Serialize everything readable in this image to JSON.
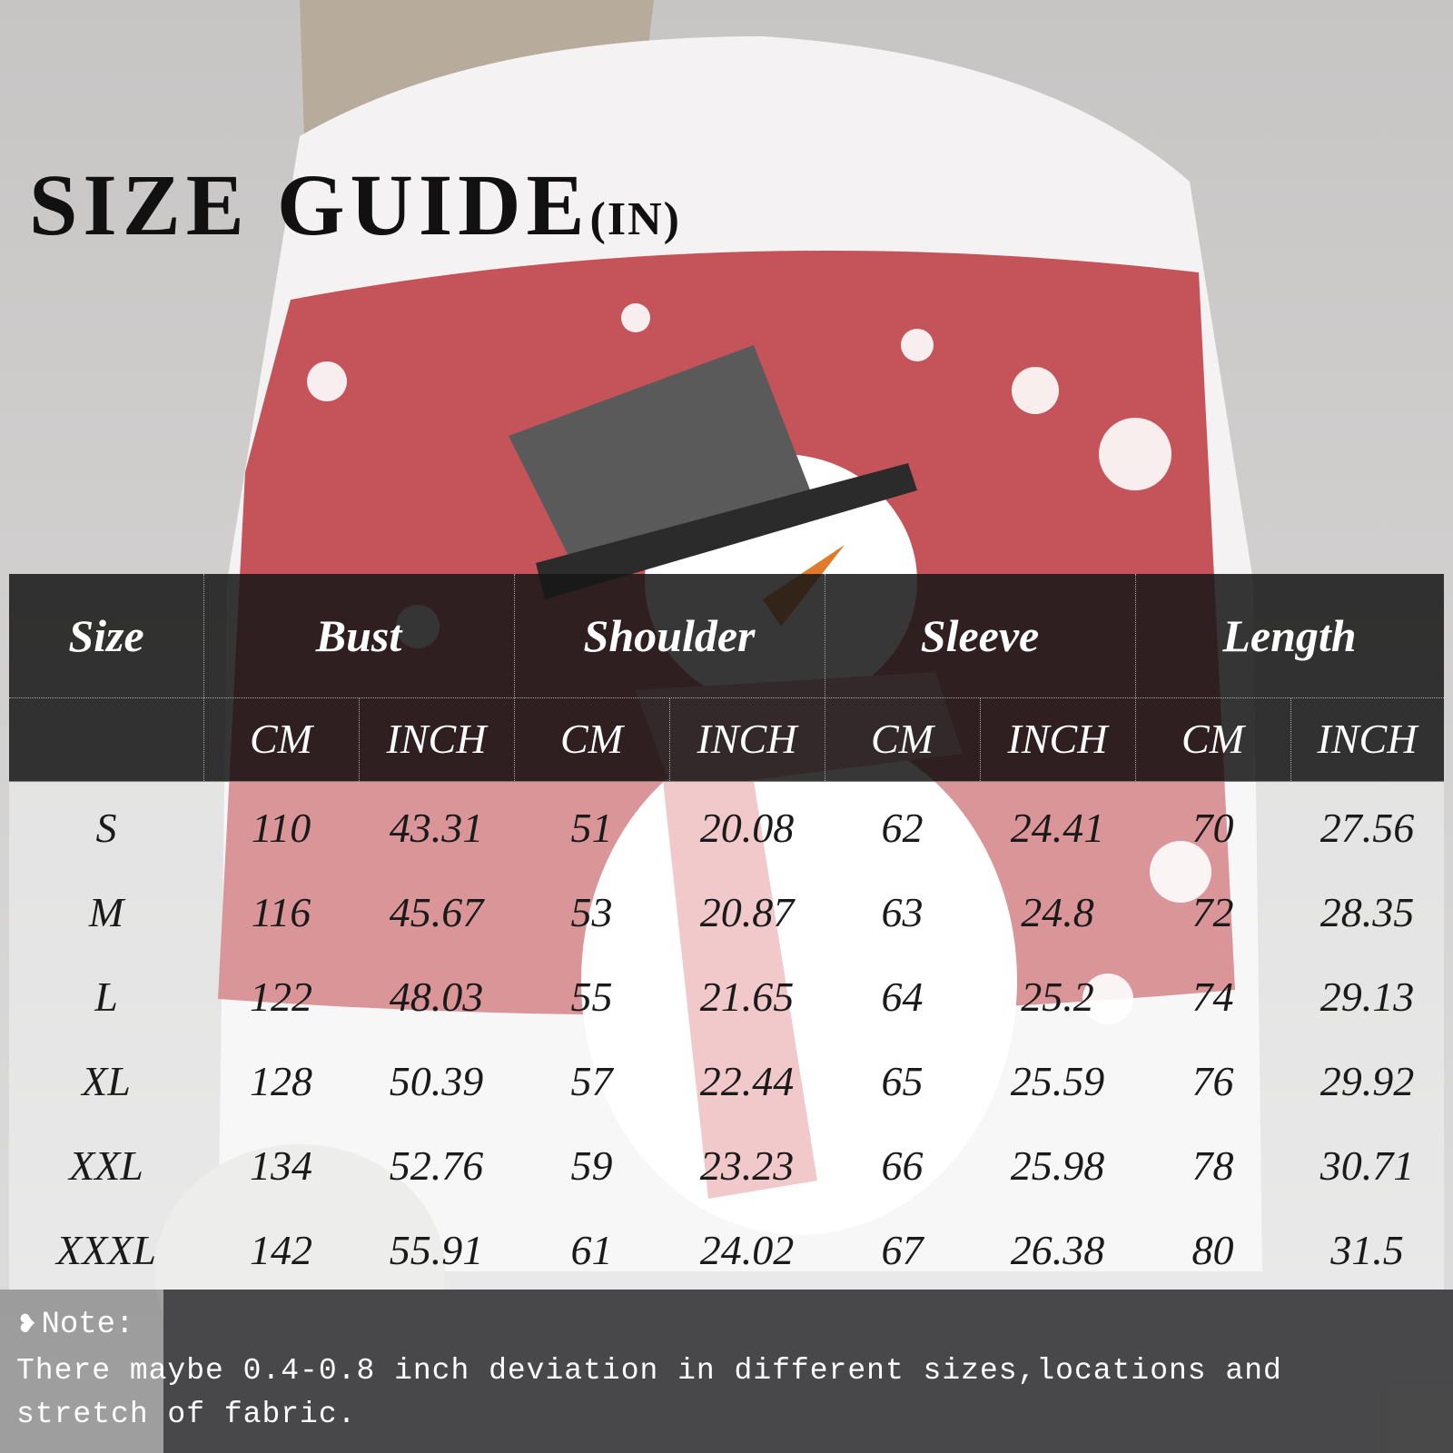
{
  "title": {
    "main": "SIZE GUIDE",
    "unit": "(IN)"
  },
  "table": {
    "groups": [
      "Size",
      "Bust",
      "Shoulder",
      "Sleeve",
      "Length"
    ],
    "subheaders": [
      "CM",
      "INCH",
      "CM",
      "INCH",
      "CM",
      "INCH",
      "CM",
      "INCH"
    ],
    "rows": [
      [
        "S",
        "110",
        "43.31",
        "51",
        "20.08",
        "62",
        "24.41",
        "70",
        "27.56"
      ],
      [
        "M",
        "116",
        "45.67",
        "53",
        "20.87",
        "63",
        "24.8",
        "72",
        "28.35"
      ],
      [
        "L",
        "122",
        "48.03",
        "55",
        "21.65",
        "64",
        "25.2",
        "74",
        "29.13"
      ],
      [
        "XL",
        "128",
        "50.39",
        "57",
        "22.44",
        "65",
        "25.59",
        "76",
        "29.92"
      ],
      [
        "XXL",
        "134",
        "52.76",
        "59",
        "23.23",
        "66",
        "25.98",
        "78",
        "30.71"
      ],
      [
        "XXXL",
        "142",
        "55.91",
        "61",
        "24.02",
        "67",
        "26.38",
        "80",
        "31.5"
      ]
    ]
  },
  "note": {
    "icon": "heart-icon",
    "title": "Note:",
    "text": "There maybe 0.4-0.8 inch deviation in different sizes,locations and stretch of fabric."
  },
  "colors": {
    "header_bg": "#161616",
    "sweater_red": "#b8434a",
    "text_dark": "#111111"
  }
}
